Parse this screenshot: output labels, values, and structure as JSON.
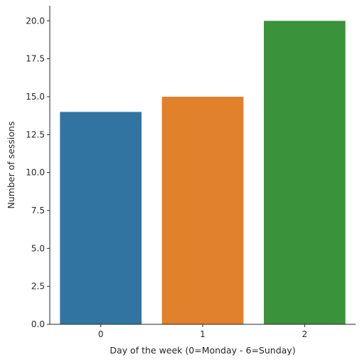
{
  "chart_data": {
    "type": "bar",
    "categories": [
      "0",
      "1",
      "2"
    ],
    "values": [
      14,
      15,
      20
    ],
    "colors": [
      "#3274a1",
      "#e1812c",
      "#3a923a"
    ],
    "title": "",
    "xlabel": "Day of the week (0=Monday - 6=Sunday)",
    "ylabel": "Number of sessions",
    "ylim": [
      0,
      21
    ],
    "yticks": [
      0,
      2.5,
      5,
      7.5,
      10,
      12.5,
      15,
      17.5,
      20
    ],
    "ytick_labels": [
      "0.0",
      "2.5",
      "5.0",
      "7.5",
      "10.0",
      "12.5",
      "15.0",
      "17.5",
      "20.0"
    ],
    "grid": false,
    "legend": "none"
  }
}
